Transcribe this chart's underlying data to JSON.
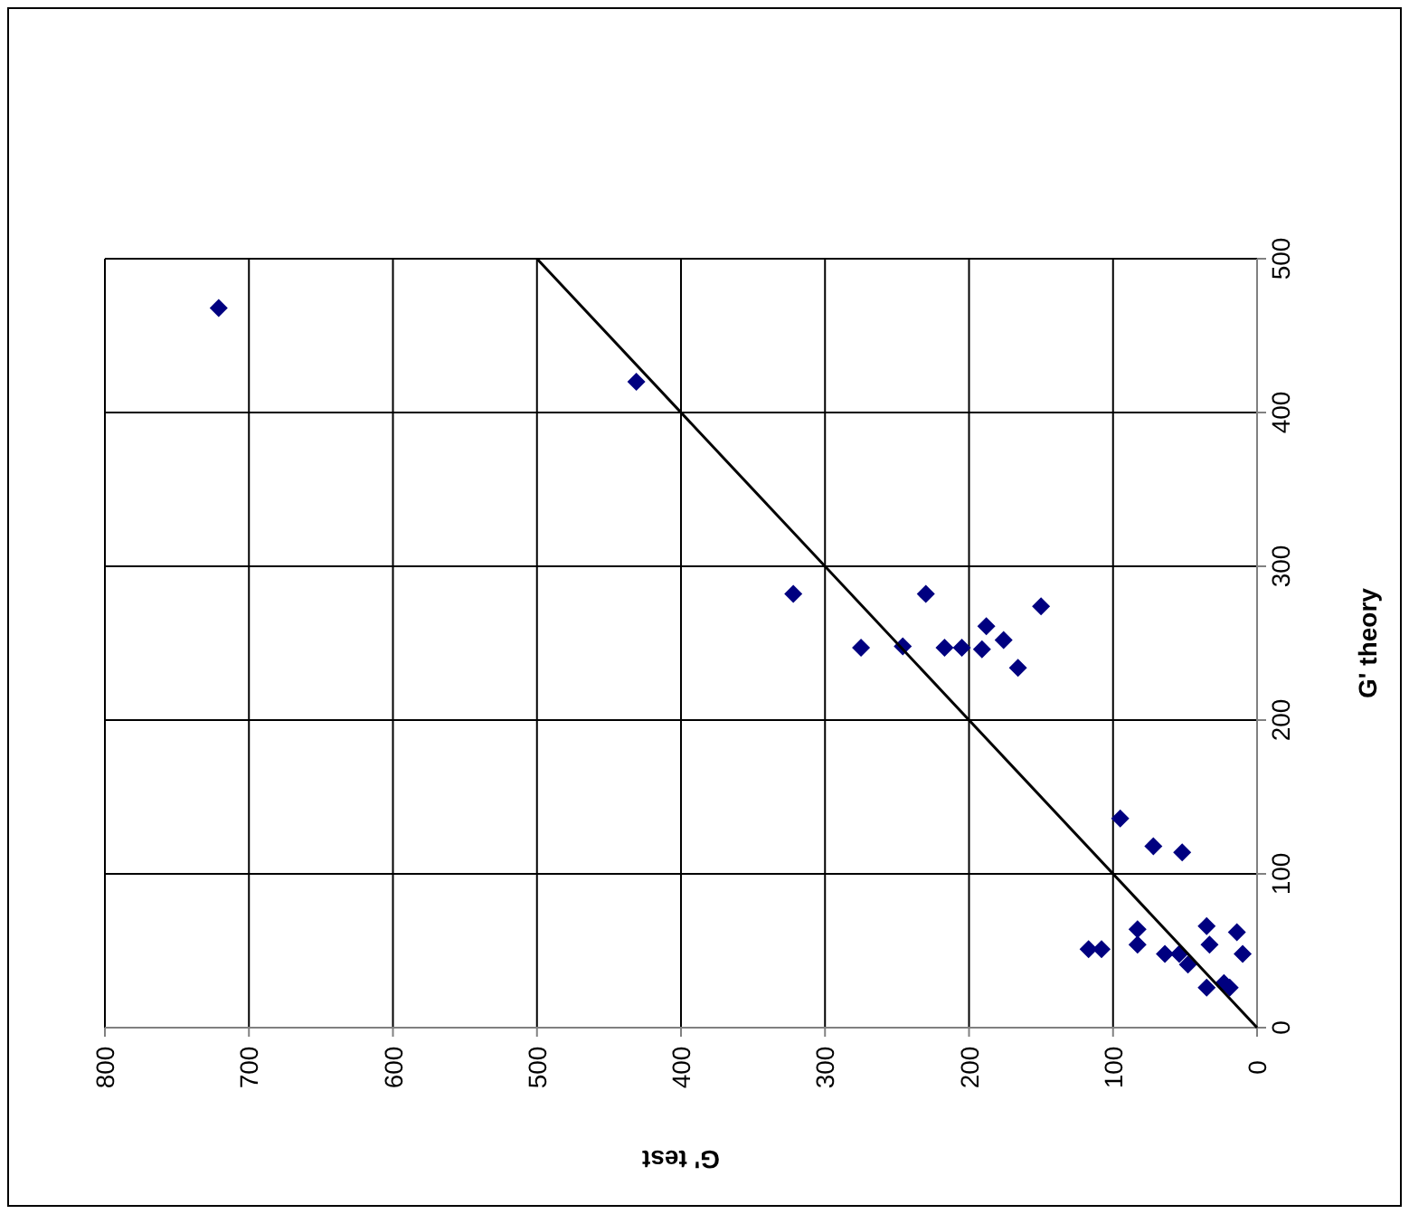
{
  "chart_data": {
    "type": "scatter",
    "xlabel": "G' test",
    "ylabel": "G' theory",
    "xlim": [
      800,
      0
    ],
    "xticks": [
      800,
      700,
      600,
      500,
      400,
      300,
      200,
      100,
      0
    ],
    "ylim": [
      0,
      500
    ],
    "yticks": [
      0,
      100,
      200,
      300,
      400,
      500
    ],
    "grid": true,
    "series": [
      {
        "marker": "diamond",
        "color": "#000080",
        "x": [
          721,
          431,
          322,
          275,
          246,
          230,
          217,
          205,
          191,
          188,
          176,
          166,
          150,
          95,
          72,
          52,
          117,
          108,
          83,
          83,
          64,
          54,
          48,
          35,
          33,
          35,
          23,
          19,
          14,
          10
        ],
        "values": [
          468,
          420,
          282,
          247,
          248,
          282,
          247,
          247,
          246,
          261,
          252,
          234,
          274,
          136,
          118,
          114,
          51,
          51,
          64,
          54,
          48,
          48,
          41,
          66,
          54,
          26,
          29,
          26,
          62,
          48
        ]
      },
      {
        "type": "line",
        "color": "#000000",
        "marker": "none",
        "line_style": "solid",
        "x": [
          0,
          500
        ],
        "values": [
          0,
          500
        ]
      }
    ]
  }
}
